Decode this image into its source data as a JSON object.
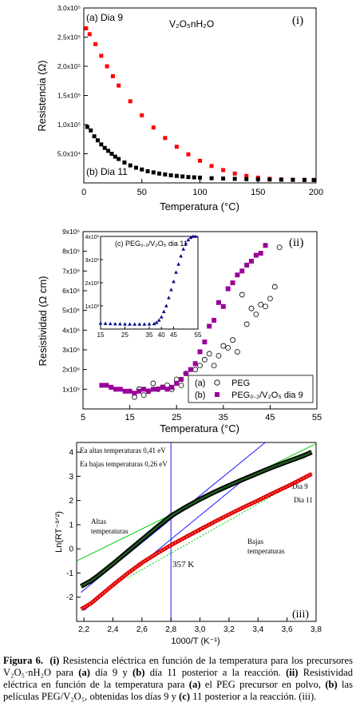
{
  "chart_data": [
    {
      "type": "scatter",
      "panel_label": "(i)",
      "formula": "V₂O₅nH₂O",
      "ylabel": "Resistencia (Ω)",
      "xlabel": "Temperatura (°C)",
      "xlim": [
        0,
        200
      ],
      "ylim": [
        0,
        300000
      ],
      "x_ticks": [
        "0",
        "50",
        "100",
        "150",
        "200"
      ],
      "y_ticks": [
        "5,0x10⁴",
        "1,0x10⁵",
        "1,5x10⁵",
        "2,0x10⁵",
        "2,5x10⁵",
        "3,0x10⁵"
      ],
      "series": [
        {
          "name": "(a) Dia 9",
          "color": "#ff0000",
          "x": [
            2,
            5,
            10,
            15,
            20,
            25,
            30,
            40,
            50,
            60,
            70,
            80,
            90,
            100,
            110,
            120,
            130,
            140,
            150,
            160,
            170,
            180,
            190,
            198
          ],
          "y": [
            265000,
            255000,
            238000,
            218000,
            200000,
            183000,
            167000,
            140000,
            116000,
            95000,
            77000,
            62000,
            49000,
            38000,
            29000,
            22000,
            16000,
            12000,
            9000,
            7000,
            6000,
            5500,
            5200,
            5000
          ]
        },
        {
          "name": "(b) Dia 11",
          "color": "#000000",
          "x": [
            3,
            6,
            9,
            12,
            15,
            18,
            21,
            24,
            27,
            30,
            35,
            40,
            45,
            50,
            55,
            60,
            65,
            70,
            75,
            80,
            85,
            90,
            95,
            100,
            110,
            120,
            130,
            140,
            150,
            160,
            170,
            180,
            190,
            198
          ],
          "y": [
            96000,
            90000,
            80000,
            73000,
            66000,
            60000,
            55000,
            50000,
            45000,
            41000,
            35000,
            30000,
            26000,
            23000,
            20000,
            18000,
            16000,
            14500,
            13000,
            12000,
            11000,
            10000,
            9500,
            9000,
            8000,
            7500,
            7000,
            6500,
            6000,
            5800,
            5500,
            5300,
            5100,
            5000
          ]
        }
      ]
    },
    {
      "type": "scatter",
      "panel_label": "(ii)",
      "ylabel": "Resistividad (Ω cm)",
      "xlabel": "Temperatura (°C)",
      "xlim": [
        5,
        55
      ],
      "ylim": [
        0,
        9000000
      ],
      "x_ticks": [
        "5",
        "15",
        "25",
        "35",
        "45",
        "55"
      ],
      "y_ticks": [
        "1x10⁶",
        "2x10⁶",
        "3x10⁶",
        "4x10⁶",
        "5x10⁶",
        "6x10⁶",
        "7x10⁶",
        "8x10⁶",
        "9x10⁶"
      ],
      "legend": [
        {
          "marker": "(a)",
          "name": "PEG"
        },
        {
          "marker": "(b)",
          "name": "PEG₀.₂/V₂O₅ dia 9"
        }
      ],
      "series": [
        {
          "name": "PEG",
          "color": "#000000",
          "x": [
            16,
            17,
            18,
            19,
            20,
            21,
            22,
            23,
            24,
            25,
            26,
            27,
            28,
            29,
            30,
            31,
            32,
            33,
            34,
            35,
            36,
            37,
            38,
            39,
            40,
            41,
            42,
            43,
            44,
            45,
            46,
            47
          ],
          "y": [
            600000,
            1000000,
            700000,
            900000,
            1300000,
            1000000,
            1100000,
            1200000,
            1000000,
            1500000,
            1200000,
            1800000,
            1500000,
            2000000,
            2200000,
            2500000,
            2800000,
            2200000,
            2700000,
            3200000,
            3100000,
            3500000,
            2900000,
            5800000,
            4300000,
            5100000,
            4800000,
            5300000,
            5200000,
            5600000,
            6200000,
            8200000
          ]
        },
        {
          "name": "PEG0.2/V2O5 dia 9",
          "color": "#990099",
          "x": [
            9,
            10,
            11,
            12,
            13,
            14,
            15,
            16,
            17,
            18,
            19,
            20,
            21,
            22,
            23,
            24,
            25,
            26,
            27,
            28,
            29,
            30,
            31,
            32,
            33,
            34,
            35,
            36,
            37,
            38,
            39,
            40,
            41,
            42,
            43,
            44
          ],
          "y": [
            1200000,
            1200000,
            1100000,
            1000000,
            1000000,
            900000,
            900000,
            800000,
            900000,
            1000000,
            900000,
            1000000,
            1000000,
            1100000,
            1000000,
            1100000,
            1300000,
            1500000,
            1800000,
            2000000,
            2300000,
            2900000,
            3400000,
            4200000,
            4500000,
            5400000,
            5200000,
            6100000,
            6400000,
            6800000,
            7000000,
            7300000,
            7500000,
            7800000,
            7900000,
            8300000
          ]
        }
      ],
      "inset": {
        "label": "(c) PEG₀.₂/V₂O₅ dia 11",
        "xlim": [
          15,
          55
        ],
        "ylim": [
          0,
          4000
        ],
        "x_ticks": [
          "15",
          "25",
          "35",
          "40",
          "45",
          "55"
        ],
        "y_ticks": [
          "1x10³",
          "2x10³",
          "3x10³",
          "4x10³"
        ],
        "series": [
          {
            "name": "dia 11",
            "color": "#00008b",
            "x": [
              15,
              17,
              19,
              21,
              23,
              25,
              27,
              29,
              31,
              33,
              35,
              37,
              38,
              39,
              40,
              41,
              42,
              43,
              44,
              45,
              46,
              47,
              48,
              49,
              50,
              51,
              52,
              53,
              54
            ],
            "y": [
              250,
              240,
              230,
              220,
              220,
              215,
              210,
              210,
              210,
              210,
              215,
              230,
              280,
              380,
              520,
              750,
              1000,
              1350,
              1700,
              2050,
              2450,
              2800,
              3150,
              3450,
              3700,
              3850,
              3950,
              4000,
              4000
            ]
          }
        ]
      }
    },
    {
      "type": "scatter",
      "panel_label": "(iii)",
      "ylabel": "Ln(RT⁻³ᐟ²)",
      "xlabel": "1000/T (K⁻¹)",
      "xlim": [
        2.15,
        3.8
      ],
      "ylim": [
        -3,
        4.4
      ],
      "x_ticks": [
        "2,2",
        "2,4",
        "2,6",
        "2,8",
        "3,0",
        "3,2",
        "3,4",
        "3,6",
        "3,8"
      ],
      "y_ticks": [
        "-2",
        "-1",
        "0",
        "1",
        "2",
        "3",
        "4"
      ],
      "annotations": {
        "ea_high": "Ea altas temperaturas 0,41 eV",
        "ea_low": "Ea bajas temperaturas 0,26 eV",
        "high_label": [
          "Altas",
          "temperaturas"
        ],
        "low_label": [
          "Bajas",
          "temperaturas"
        ],
        "transition": "357 K",
        "dia9": "Dia 9",
        "dia11": "Dia 11"
      },
      "series": [
        {
          "name": "Dia 9",
          "color": "#000000",
          "x": [
            2.18,
            2.25,
            2.3,
            2.4,
            2.5,
            2.6,
            2.7,
            2.8,
            2.9,
            3.0,
            3.1,
            3.2,
            3.3,
            3.4,
            3.5,
            3.6,
            3.7,
            3.77
          ],
          "y": [
            -1.55,
            -1.32,
            -1.1,
            -0.62,
            -0.12,
            0.38,
            0.88,
            1.36,
            1.72,
            2.05,
            2.35,
            2.62,
            2.88,
            3.13,
            3.38,
            3.6,
            3.82,
            4.0
          ]
        },
        {
          "name": "Dia 11",
          "color": "#ff0000",
          "x": [
            2.18,
            2.25,
            2.3,
            2.4,
            2.5,
            2.6,
            2.7,
            2.8,
            2.9,
            3.0,
            3.1,
            3.2,
            3.3,
            3.4,
            3.5,
            3.6,
            3.7,
            3.77
          ],
          "y": [
            -2.5,
            -2.25,
            -2.0,
            -1.5,
            -1.02,
            -0.58,
            -0.2,
            0.15,
            0.48,
            0.8,
            1.12,
            1.42,
            1.72,
            2.0,
            2.3,
            2.58,
            2.88,
            3.1
          ]
        }
      ]
    }
  ],
  "caption": {
    "label": "Figura 6.",
    "parts": [
      {
        "b": "(i)",
        "t": " Resistencia eléctrica en función de la temperatura para los precursores V₂O₅·nH₂O para "
      },
      {
        "b": "(a)",
        "t": " día 9 y "
      },
      {
        "b": "(b)",
        "t": " día 11 posterior a la reacción. "
      },
      {
        "b": "(ii)",
        "t": " Resistividad eléctrica en función de la temperatura para "
      },
      {
        "b": "(a)",
        "t": " el PEG precursor en polvo, "
      },
      {
        "b": "(b)",
        "t": " las películas PEG/V₂O₅, obtenidas los días 9 y "
      },
      {
        "b": "(c)",
        "t": " 11 posterior a la reacción. (iii)."
      }
    ]
  }
}
